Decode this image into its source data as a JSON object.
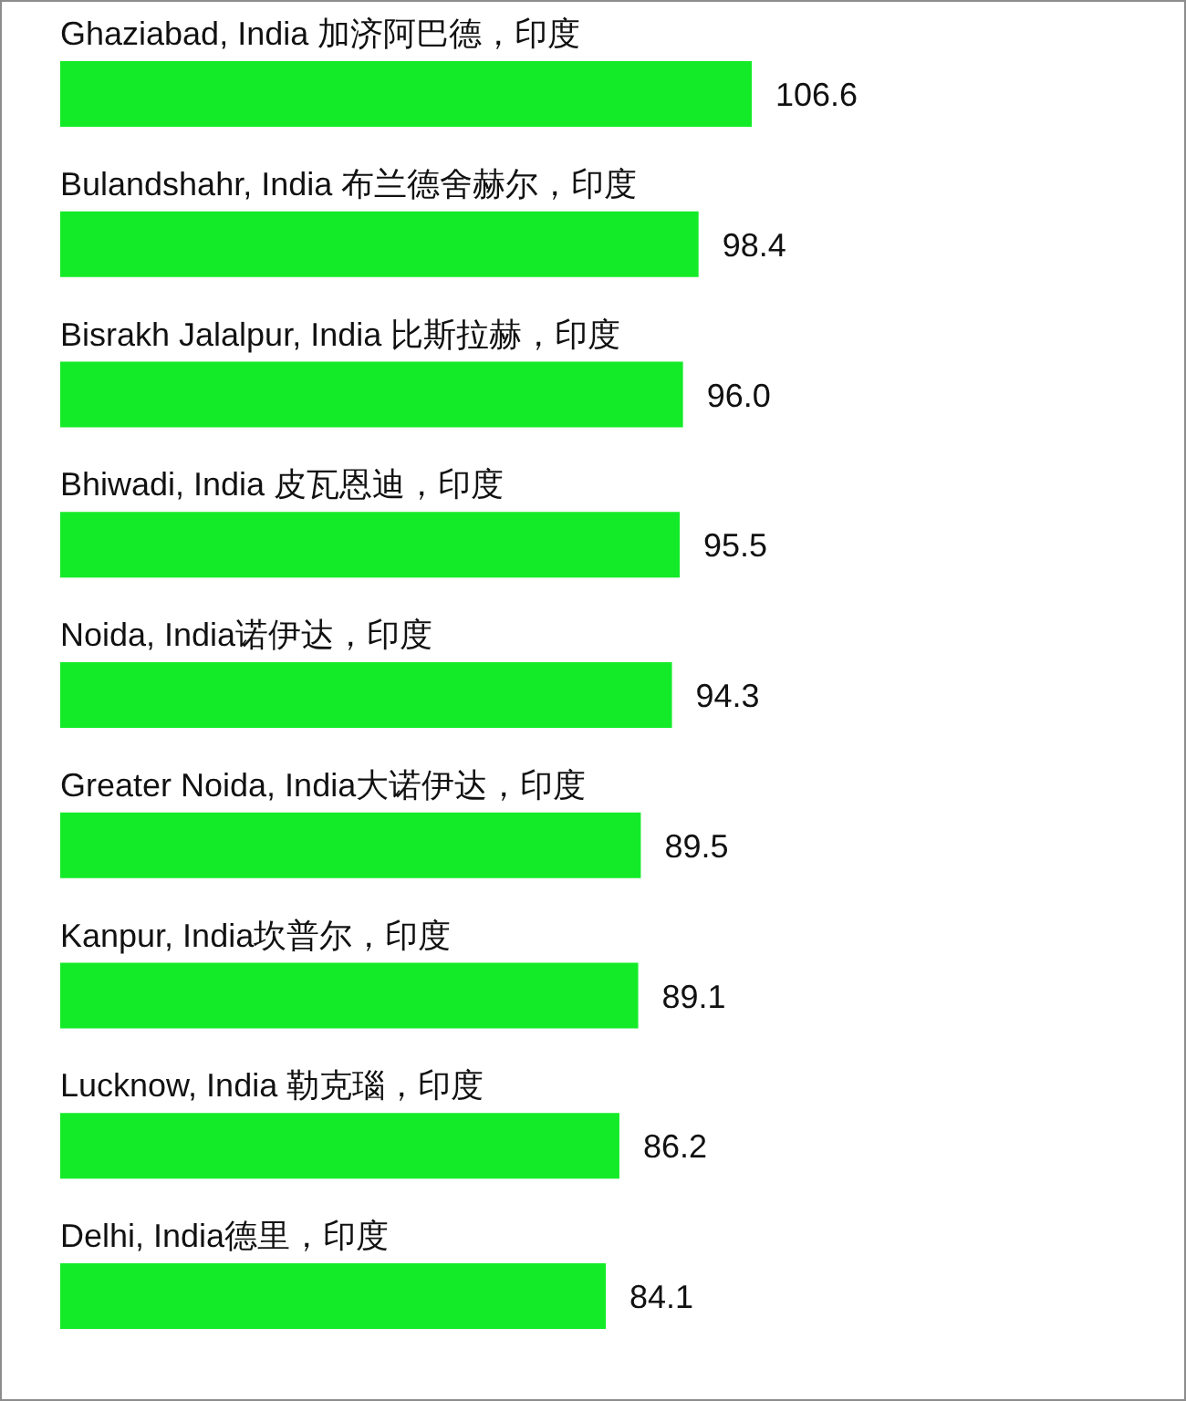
{
  "chart_data": {
    "type": "bar",
    "orientation": "horizontal",
    "categories": [
      "Ghaziabad, India 加济阿巴德，印度",
      "Bulandshahr, India 布兰德舍赫尔，印度",
      "Bisrakh Jalalpur, India 比斯拉赫，印度",
      "Bhiwadi, India 皮瓦恩迪，印度",
      "Noida, India诺伊达，印度",
      "Greater Noida, India大诺伊达，印度",
      "Kanpur, India坎普尔，印度",
      "Lucknow, India 勒克瑙，印度",
      "Delhi, India德里，印度"
    ],
    "values": [
      106.6,
      98.4,
      96.0,
      95.5,
      94.3,
      89.5,
      89.1,
      86.2,
      84.1
    ],
    "value_labels": [
      "106.6",
      "98.4",
      "96.0",
      "95.5",
      "94.3",
      "89.5",
      "89.1",
      "86.2",
      "84.1"
    ],
    "color": "#14eb28"
  }
}
